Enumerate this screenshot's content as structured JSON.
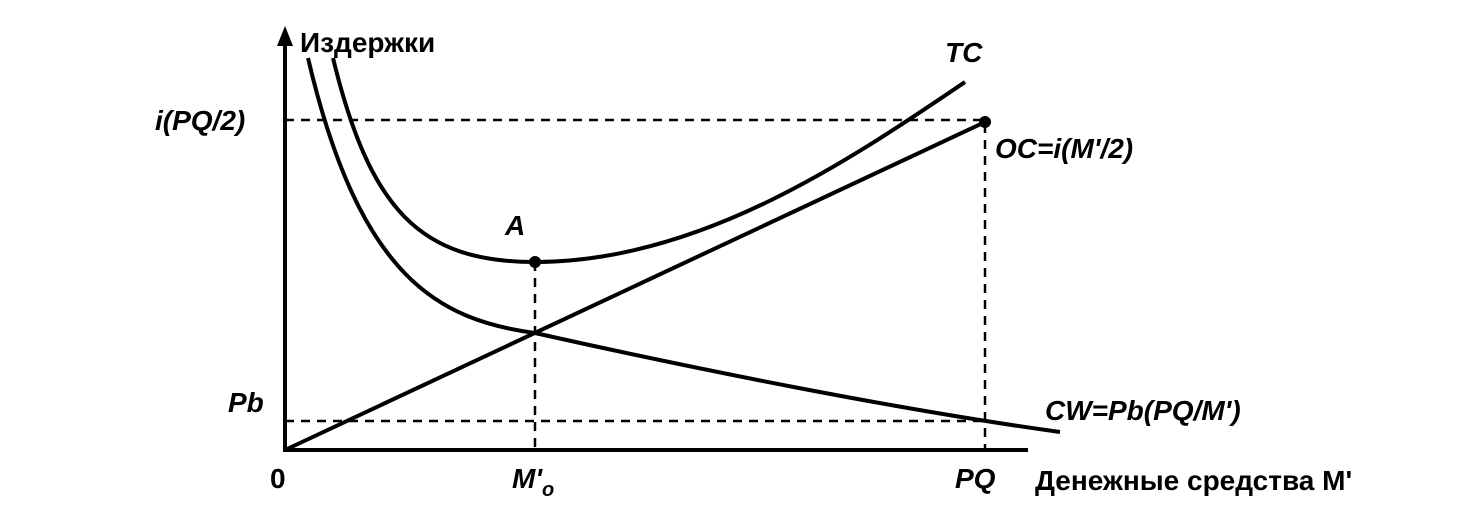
{
  "y_axis": {
    "label": "Издержки"
  },
  "x_axis": {
    "label": "Денежные средства M'",
    "origin": "0",
    "ticks": {
      "optimum": {
        "main": "M'",
        "sub": "o"
      },
      "max": "PQ"
    }
  },
  "y_ticks": {
    "top": "i(PQ/2)",
    "bottom": "Pb"
  },
  "curves": {
    "tc": "TC",
    "oc": "OC=i(M'/2)",
    "cw": "CW=Pb(PQ/M')"
  },
  "points": {
    "minimum": "A"
  }
}
